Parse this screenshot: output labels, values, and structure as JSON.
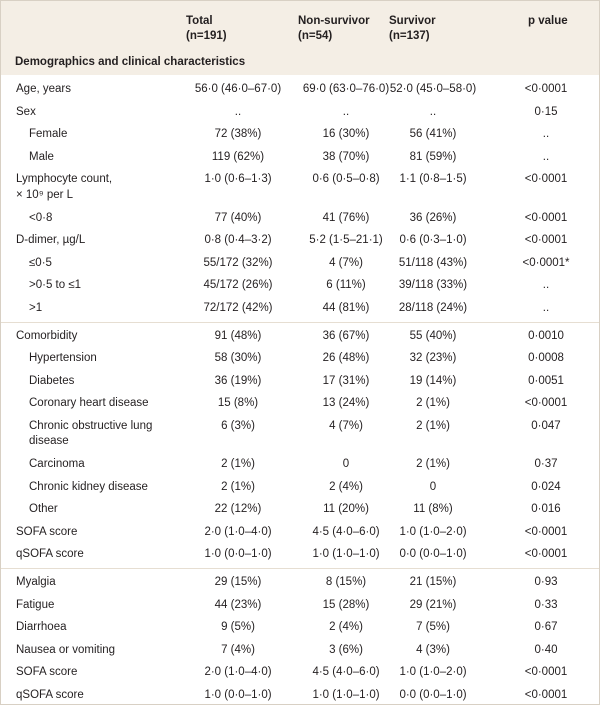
{
  "columns": [
    {
      "name": "Total",
      "n": "(n=191)"
    },
    {
      "name": "Non-survivor",
      "n": "(n=54)"
    },
    {
      "name": "Survivor",
      "n": "(n=137)"
    },
    {
      "name": "p value"
    }
  ],
  "section": {
    "title": "Demographics and clinical characteristics",
    "groups": [
      [
        {
          "label": "Age, years",
          "cells": [
            "56·0 (46·0–67·0)",
            "69·0 (63·0–76·0)",
            "52·0 (45·0–58·0)",
            "<0·0001"
          ]
        },
        {
          "label": "Sex",
          "cells": [
            "..",
            "..",
            "..",
            "0·15"
          ],
          "sub": [
            {
              "label": "Female",
              "cells": [
                "72 (38%)",
                "16 (30%)",
                "56 (41%)",
                ".."
              ]
            },
            {
              "label": "Male",
              "cells": [
                "119 (62%)",
                "38 (70%)",
                "81 (59%)",
                ".."
              ]
            }
          ]
        },
        {
          "label": [
            "Lymphocyte count,",
            "× 10⁹ per L"
          ],
          "cells": [
            "1·0 (0·6–1·3)",
            "0·6 (0·5–0·8)",
            "1·1 (0·8–1·5)",
            "<0·0001"
          ],
          "sub": [
            {
              "label": "<0·8",
              "cells": [
                "77 (40%)",
                "41 (76%)",
                "36 (26%)",
                "<0·0001"
              ]
            }
          ]
        },
        {
          "label": "D-dimer, µg/L",
          "cells": [
            "0·8 (0·4–3·2)",
            "5·2 (1·5–21·1)",
            "0·6 (0·3–1·0)",
            "<0·0001"
          ],
          "sub": [
            {
              "label": "≤0·5",
              "cells": [
                "55/172 (32%)",
                "4 (7%)",
                "51/118 (43%)",
                "<0·0001*"
              ]
            },
            {
              "label": ">0·5 to ≤1",
              "cells": [
                "45/172 (26%)",
                "6 (11%)",
                "39/118 (33%)",
                ".."
              ]
            },
            {
              "label": ">1",
              "cells": [
                "72/172 (42%)",
                "44 (81%)",
                "28/118 (24%)",
                ".."
              ]
            }
          ]
        }
      ],
      [
        {
          "label": "Comorbidity",
          "cells": [
            "91 (48%)",
            "36 (67%)",
            "55 (40%)",
            "0·0010"
          ],
          "sub": [
            {
              "label": "Hypertension",
              "cells": [
                "58 (30%)",
                "26 (48%)",
                "32 (23%)",
                "0·0008"
              ]
            },
            {
              "label": "Diabetes",
              "cells": [
                "36 (19%)",
                "17 (31%)",
                "19 (14%)",
                "0·0051"
              ]
            },
            {
              "label": "Coronary heart disease",
              "cells": [
                "15 (8%)",
                "13 (24%)",
                "2 (1%)",
                "<0·0001"
              ]
            },
            {
              "label": [
                "Chronic obstructive lung",
                "disease"
              ],
              "cells": [
                "6 (3%)",
                "4 (7%)",
                "2 (1%)",
                "0·047"
              ]
            },
            {
              "label": "Carcinoma",
              "cells": [
                "2 (1%)",
                "0",
                "2 (1%)",
                "0·37"
              ]
            },
            {
              "label": "Chronic kidney disease",
              "cells": [
                "2 (1%)",
                "2 (4%)",
                "0",
                "0·024"
              ]
            },
            {
              "label": "Other",
              "cells": [
                "22 (12%)",
                "11 (20%)",
                "11 (8%)",
                "0·016"
              ]
            }
          ]
        },
        {
          "label": "SOFA score",
          "cells": [
            "2·0 (1·0–4·0)",
            "4·5 (4·0–6·0)",
            "1·0 (1·0–2·0)",
            "<0·0001"
          ]
        },
        {
          "label": "qSOFA score",
          "cells": [
            "1·0 (0·0–1·0)",
            "1·0 (1·0–1·0)",
            "0·0 (0·0–1·0)",
            "<0·0001"
          ]
        }
      ],
      [
        {
          "label": "Myalgia",
          "cells": [
            "29 (15%)",
            "8 (15%)",
            "21 (15%)",
            "0·93"
          ]
        },
        {
          "label": "Fatigue",
          "cells": [
            "44 (23%)",
            "15 (28%)",
            "29 (21%)",
            "0·33"
          ]
        },
        {
          "label": "Diarrhoea",
          "cells": [
            "9 (5%)",
            "2 (4%)",
            "7 (5%)",
            "0·67"
          ]
        },
        {
          "label": "Nausea or vomiting",
          "cells": [
            "7 (4%)",
            "3 (6%)",
            "4 (3%)",
            "0·40"
          ]
        },
        {
          "label": "SOFA score",
          "cells": [
            "2·0 (1·0–4·0)",
            "4·5 (4·0–6·0)",
            "1·0 (1·0–2·0)",
            "<0·0001"
          ]
        },
        {
          "label": "qSOFA score",
          "cells": [
            "1·0 (0·0–1·0)",
            "1·0 (1·0–1·0)",
            "0·0 (0·0–1·0)",
            "<0·0001"
          ]
        }
      ]
    ]
  }
}
